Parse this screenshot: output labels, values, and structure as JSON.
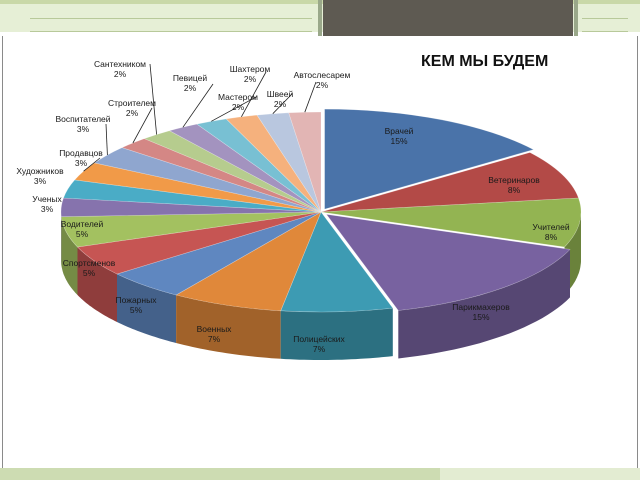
{
  "chart_data": {
    "type": "pie",
    "title": "КЕМ МЫ БУДЕМ",
    "labels": [
      "Врачей",
      "Ветеринаров",
      "Учителей",
      "Парикмахеров",
      "Полицейских",
      "Военных",
      "Пожарных",
      "Спортсменов",
      "Водителей",
      "Ученых",
      "Художников",
      "Продавцов",
      "Воспитателей",
      "Строителем",
      "Сантехником",
      "Певицей",
      "Мастером",
      "Шахтером",
      "Швеей",
      "Автослесарем"
    ],
    "values": [
      15,
      8,
      8,
      15,
      7,
      7,
      5,
      5,
      5,
      3,
      3,
      3,
      3,
      2,
      2,
      2,
      2,
      2,
      2,
      2
    ],
    "value_labels": [
      "15%",
      "8%",
      "8%",
      "15%",
      "7%",
      "7%",
      "5%",
      "5%",
      "5%",
      "3%",
      "3%",
      "3%",
      "3%",
      "2%",
      "2%",
      "2%",
      "2%",
      "2%",
      "2%",
      "2%"
    ],
    "colors": [
      "#4a73a9",
      "#b34a47",
      "#93b452",
      "#7862a0",
      "#3d9bb3",
      "#e0883a",
      "#5f87c0",
      "#c65553",
      "#a3c160",
      "#8673ad",
      "#4aacc6",
      "#f19a48",
      "#8fa6cf",
      "#d48785",
      "#b6cc8e",
      "#a393bf",
      "#78c0d3",
      "#f5b17d",
      "#b9c7df",
      "#e2b5b4"
    ],
    "legend": "none",
    "style": "3d-exploded-largest"
  }
}
